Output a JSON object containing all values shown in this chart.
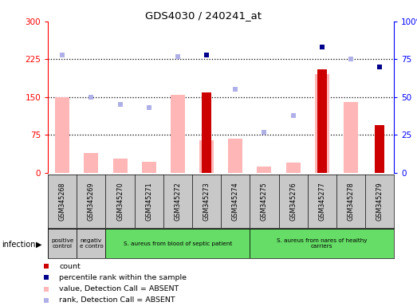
{
  "title": "GDS4030 / 240241_at",
  "samples": [
    "GSM345268",
    "GSM345269",
    "GSM345270",
    "GSM345271",
    "GSM345272",
    "GSM345273",
    "GSM345274",
    "GSM345275",
    "GSM345276",
    "GSM345277",
    "GSM345278",
    "GSM345279"
  ],
  "count_values": [
    null,
    null,
    null,
    null,
    null,
    160,
    null,
    null,
    null,
    205,
    null,
    95
  ],
  "value_absent": [
    150,
    40,
    28,
    22,
    155,
    65,
    68,
    12,
    20,
    195,
    140,
    null
  ],
  "percentile_rank": [
    78,
    50,
    45,
    43,
    77,
    78,
    55,
    27,
    38,
    83,
    75,
    70
  ],
  "rank_absent": [
    78,
    null,
    43,
    42,
    77,
    null,
    null,
    null,
    null,
    null,
    null,
    null
  ],
  "present_sample": [
    false,
    false,
    false,
    false,
    false,
    true,
    false,
    false,
    false,
    true,
    false,
    true
  ],
  "groups": [
    {
      "label": "positive\ncontrol",
      "start": 0,
      "end": 1,
      "color": "#c8c8c8"
    },
    {
      "label": "negativ\ne contro",
      "start": 1,
      "end": 2,
      "color": "#c8c8c8"
    },
    {
      "label": "S. aureus from blood of septic patient",
      "start": 2,
      "end": 7,
      "color": "#66dd66"
    },
    {
      "label": "S. aureus from nares of healthy\ncarriers",
      "start": 7,
      "end": 12,
      "color": "#66dd66"
    }
  ],
  "ylim_left": [
    0,
    300
  ],
  "ylim_right": [
    0,
    100
  ],
  "yticks_left": [
    0,
    75,
    150,
    225,
    300
  ],
  "yticks_right": [
    0,
    25,
    50,
    75,
    100
  ],
  "ytick_labels_left": [
    "0",
    "75",
    "150",
    "225",
    "300"
  ],
  "ytick_labels_right": [
    "0",
    "25",
    "50",
    "75",
    "100%"
  ],
  "hlines": [
    75,
    150,
    225
  ],
  "color_count": "#cc0000",
  "color_percentile": "#00008b",
  "color_value_absent": "#ffb6b6",
  "color_rank_absent": "#b0b0e8",
  "bar_width": 0.5,
  "cell_bg": "#c8c8c8",
  "plot_bg": "#ffffff"
}
